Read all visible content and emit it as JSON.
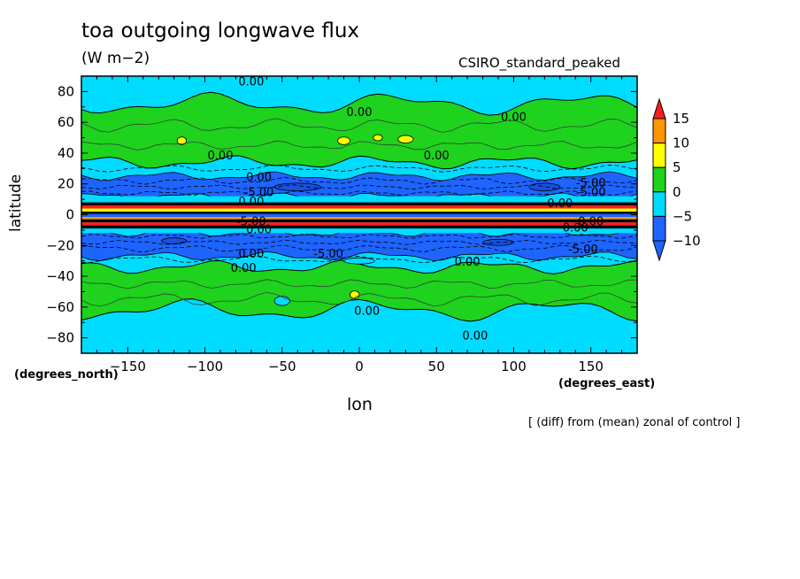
{
  "title": "toa outgoing longwave flux",
  "units": "(W m−2)",
  "model_label": "CSIRO_standard_peaked",
  "note": "[ (diff) from (mean) zonal of control ]",
  "chart_data": {
    "type": "contour",
    "xlabel": "lon",
    "ylabel": "latitude",
    "x_unit_label": "(degrees_east)",
    "y_unit_label": "(degrees_north)",
    "xlim": [
      -180,
      180
    ],
    "ylim": [
      -90,
      90
    ],
    "xticks": [
      -150,
      -100,
      -50,
      0,
      50,
      100,
      150
    ],
    "yticks": [
      80,
      60,
      40,
      20,
      0,
      -20,
      -40,
      -60,
      -80
    ],
    "colorbar": {
      "levels": [
        -10,
        -5,
        0,
        5,
        10,
        15
      ],
      "labels": [
        "15",
        "10",
        "5",
        "0",
        "−5",
        "−10"
      ],
      "colors": [
        "#1e64ff",
        "#00dcff",
        "#1ed21e",
        "#ffff00",
        "#ff9600",
        "#ff1e1e"
      ]
    },
    "zonal_bands": [
      {
        "lat_from": 90,
        "lat_to": 70,
        "level": "cyan"
      },
      {
        "lat_from": 70,
        "lat_to": 34,
        "level": "green"
      },
      {
        "lat_from": 34,
        "lat_to": 26,
        "level": "cyan"
      },
      {
        "lat_from": 26,
        "lat_to": 12,
        "level": "blue"
      },
      {
        "lat_from": 12,
        "lat_to": -12,
        "level": "mixed"
      },
      {
        "lat_from": -12,
        "lat_to": -27,
        "level": "blue"
      },
      {
        "lat_from": -27,
        "lat_to": -34,
        "level": "cyan"
      },
      {
        "lat_from": -34,
        "lat_to": -62,
        "level": "green"
      },
      {
        "lat_from": -62,
        "lat_to": -90,
        "level": "cyan"
      }
    ],
    "contour_labels": [
      "0.00",
      "0.00",
      "0.00",
      "0.00",
      "0.00",
      "0.00",
      "-5.00",
      "-5.00",
      "-5.00",
      "-5.00",
      "0.00",
      "0.00",
      "0.00",
      "0.00",
      "0.00",
      "0.00",
      "0.00",
      "-5.00",
      "-5.00",
      "0.00",
      "0.00",
      "0.00"
    ]
  }
}
